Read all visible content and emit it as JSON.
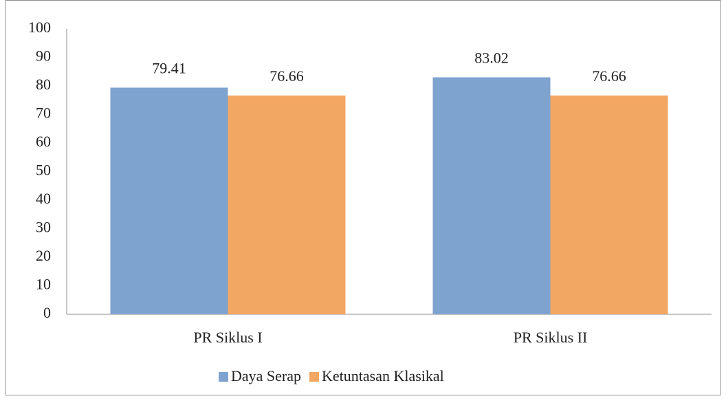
{
  "chart_data": {
    "type": "bar",
    "categories": [
      "PR Siklus I",
      "PR Siklus II"
    ],
    "series": [
      {
        "name": "Daya Serap",
        "color": "#7fa3cf",
        "values": [
          79.41,
          83.02
        ]
      },
      {
        "name": "Ketuntasan Klasikal",
        "color": "#f2a763",
        "values": [
          76.66,
          76.66
        ]
      }
    ],
    "ylim": [
      0,
      100
    ],
    "yticks": [
      0,
      10,
      20,
      30,
      40,
      50,
      60,
      70,
      80,
      90,
      100
    ],
    "grid": false,
    "legend": "bottom"
  }
}
